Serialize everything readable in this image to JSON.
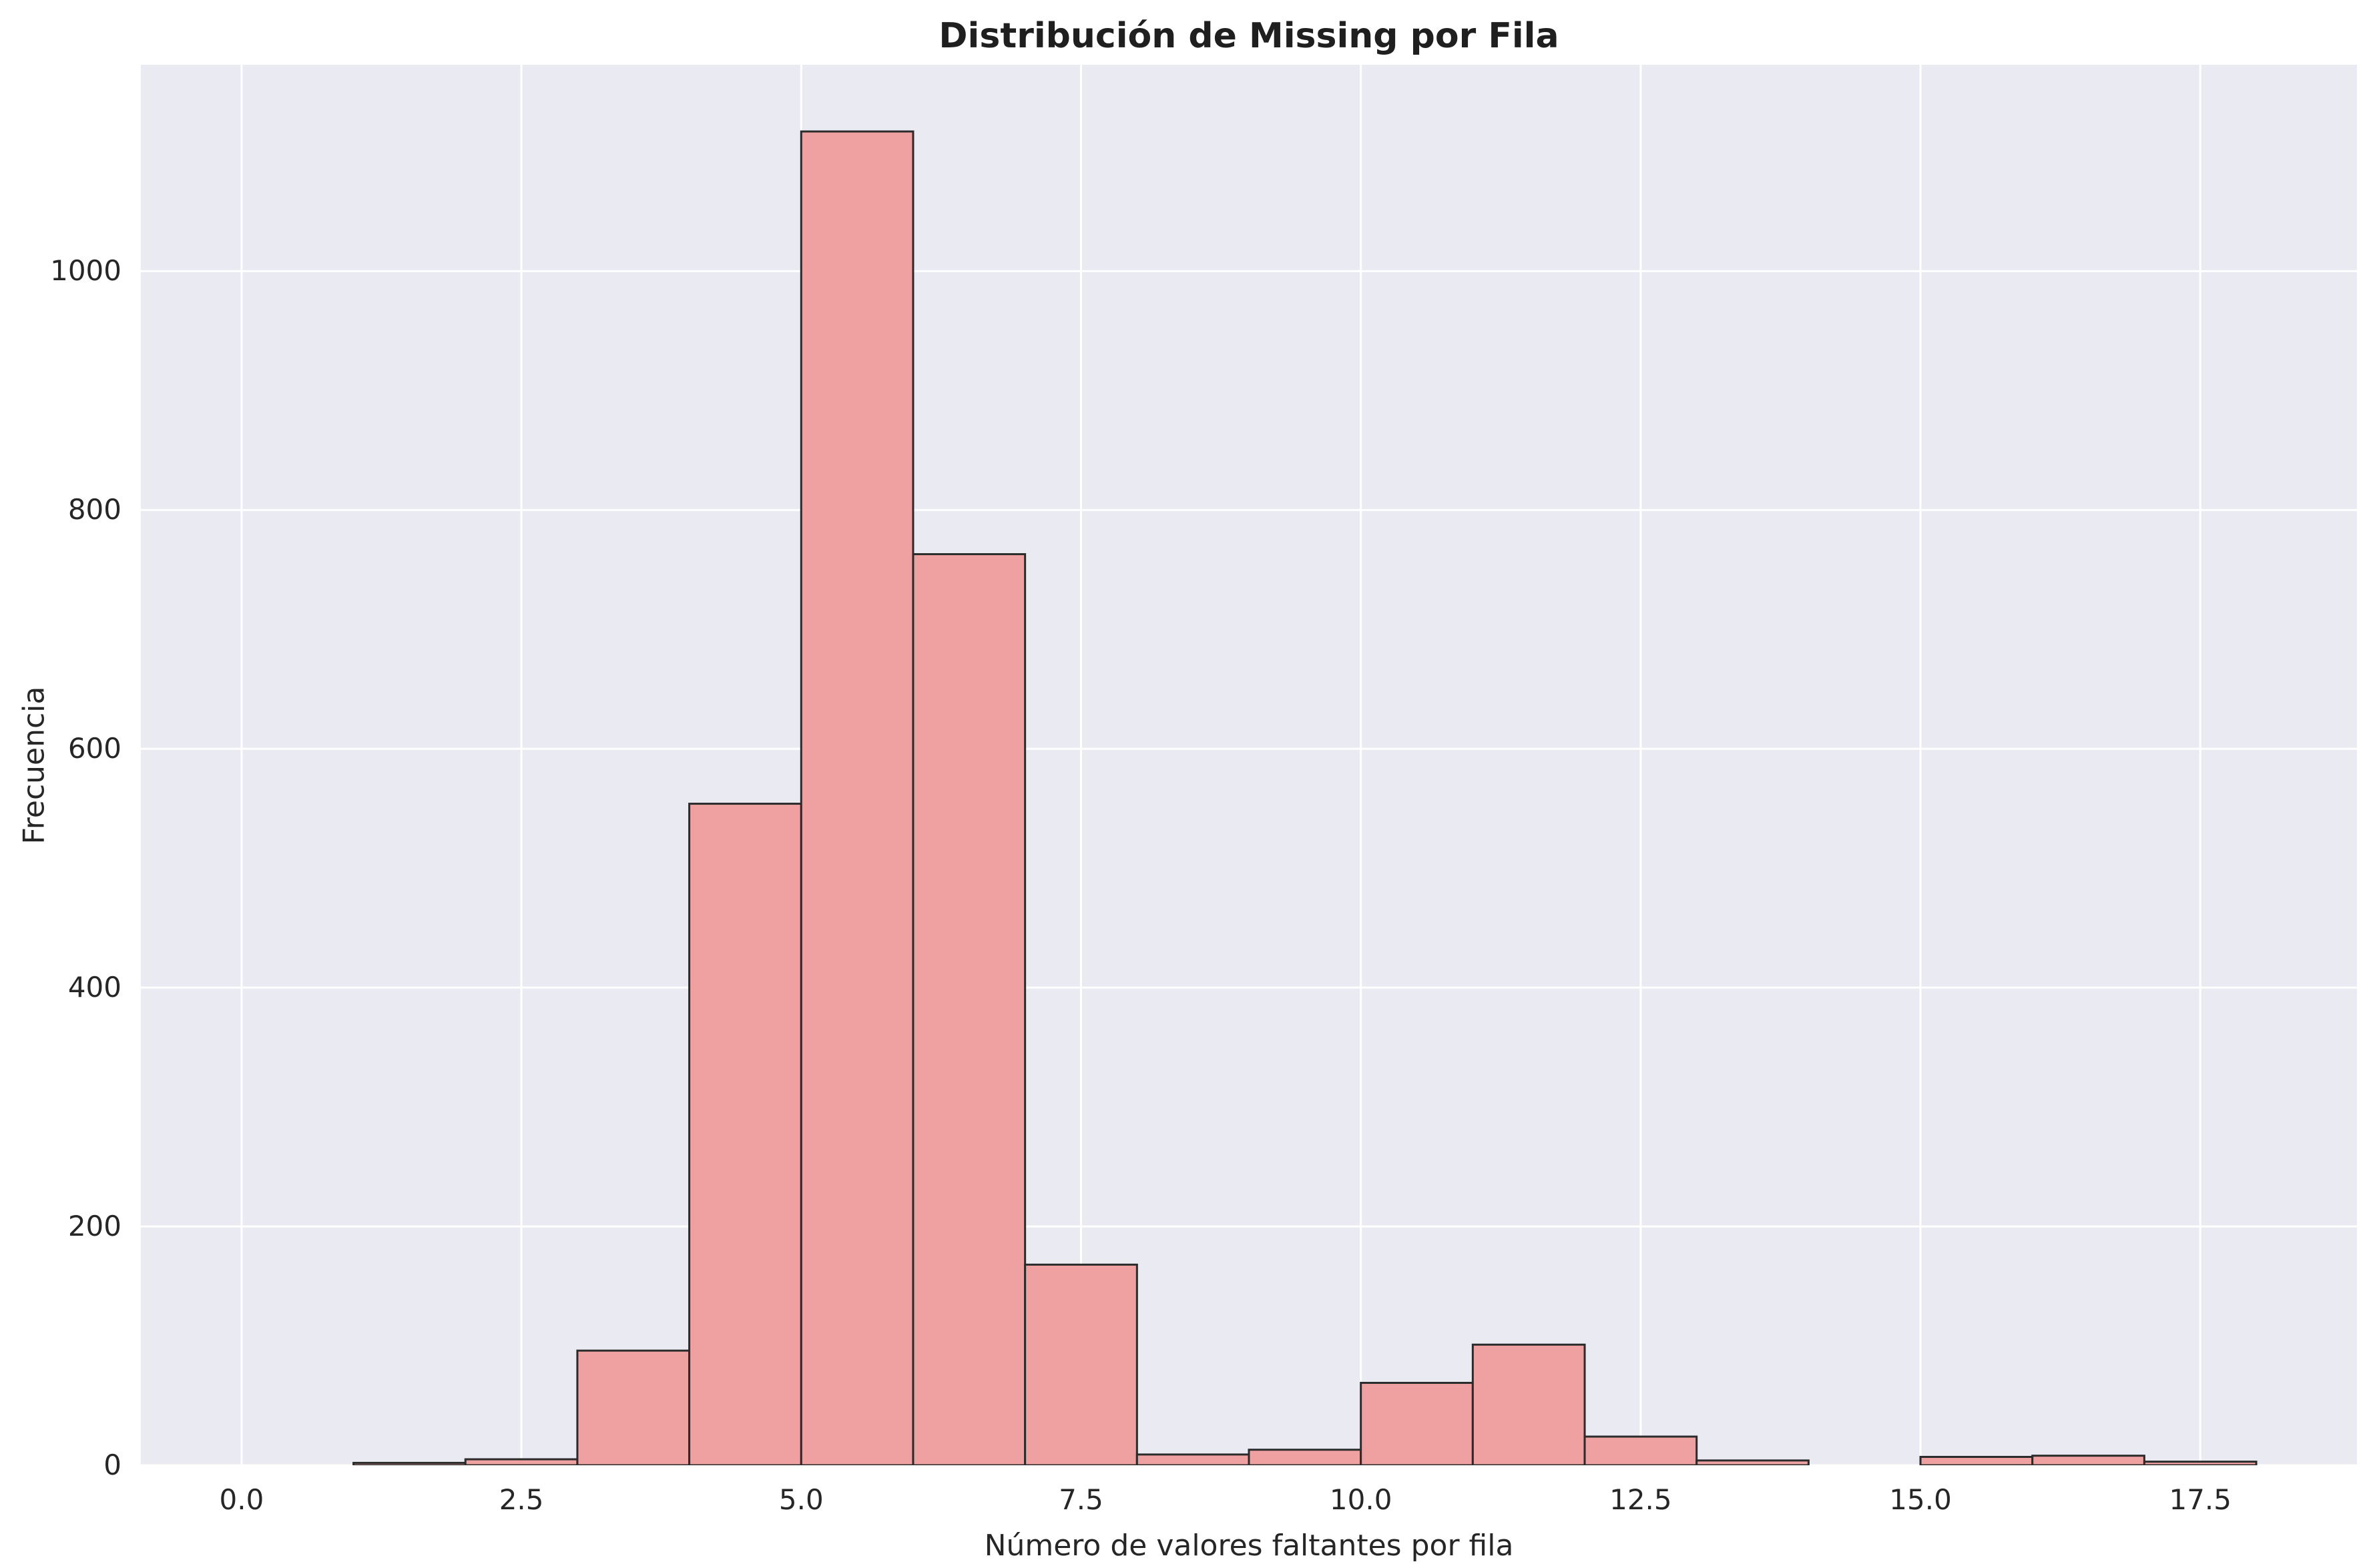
{
  "chart_data": {
    "type": "bar",
    "subtype": "histogram",
    "title": "Distribución de Missing por Fila",
    "xlabel": "Número de valores faltantes por fila",
    "ylabel": "Frecuencia",
    "bin_edges": [
      0,
      1,
      2,
      3,
      4,
      5,
      6,
      7,
      8,
      9,
      10,
      11,
      12,
      13,
      14,
      15,
      16,
      17,
      18
    ],
    "counts": [
      0,
      2,
      5,
      96,
      554,
      1117,
      763,
      168,
      9,
      13,
      69,
      101,
      24,
      4,
      0,
      7,
      8,
      3
    ],
    "x_tick_values": [
      0,
      2.5,
      5,
      7.5,
      10,
      12.5,
      15,
      17.5
    ],
    "x_tick_labels": [
      "0.0",
      "2.5",
      "5.0",
      "7.5",
      "10.0",
      "12.5",
      "15.0",
      "17.5"
    ],
    "y_tick_values": [
      0,
      200,
      400,
      600,
      800,
      1000
    ],
    "y_tick_labels": [
      "0",
      "200",
      "400",
      "600",
      "800",
      "1000"
    ],
    "xlim": [
      -0.9,
      18.9
    ],
    "ylim": [
      0,
      1172.9
    ],
    "grid": true,
    "legend_position": "none",
    "colors": {
      "figure_bg": "#ffffff",
      "plot_bg": "#eaeaf2",
      "grid": "#ffffff",
      "bar_fill": "#efa0a1",
      "bar_edge": "#2b2b2b",
      "text": "#262626",
      "title_text": "#1f1f1f"
    }
  }
}
